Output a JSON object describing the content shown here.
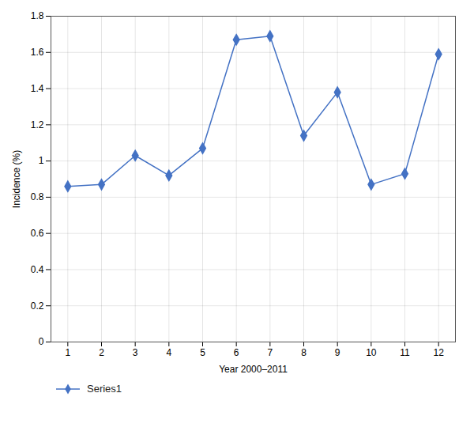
{
  "chart_data": {
    "type": "line",
    "x": [
      1,
      2,
      3,
      4,
      5,
      6,
      7,
      8,
      9,
      10,
      11,
      12
    ],
    "series": [
      {
        "name": "Series1",
        "color": "#4472C4",
        "marker": "diamond",
        "values": [
          0.86,
          0.87,
          1.03,
          0.92,
          1.07,
          1.67,
          1.69,
          1.14,
          1.38,
          0.87,
          0.93,
          1.59
        ]
      }
    ],
    "xlabel": "Year 2000–2011",
    "ylabel": "Incidence (%)",
    "xlim": [
      0.5,
      12.5
    ],
    "xticks": [
      1,
      2,
      3,
      4,
      5,
      6,
      7,
      8,
      9,
      10,
      11,
      12
    ],
    "ylim": [
      0,
      1.8
    ],
    "yticks": [
      0,
      0.2,
      0.4,
      0.6,
      0.8,
      1,
      1.2,
      1.4,
      1.6,
      1.8
    ],
    "grid": true,
    "legend": "lower left"
  }
}
